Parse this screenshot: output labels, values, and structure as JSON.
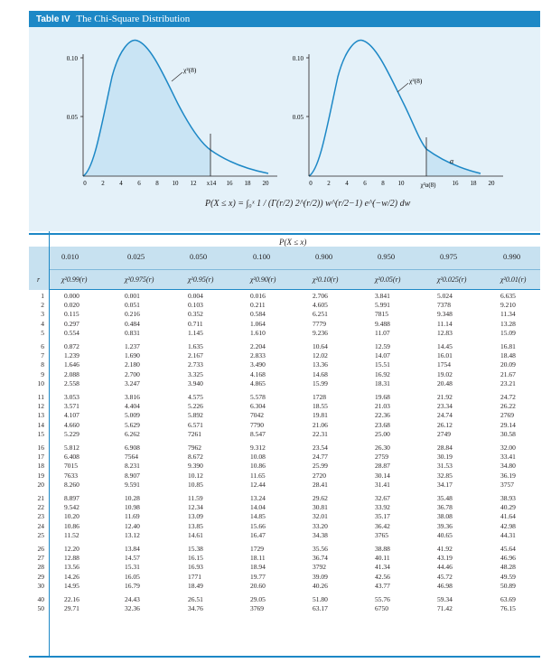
{
  "title": {
    "label": "Table IV",
    "name": "The Chi-Square Distribution"
  },
  "left_graph": {
    "y_ticks": [
      "0.10",
      "0.05"
    ],
    "x_ticks": [
      "0",
      "2",
      "4",
      "6",
      "8",
      "10",
      "12",
      "x14",
      "16",
      "18",
      "20"
    ],
    "curve_label": "χ²(8)"
  },
  "right_graph": {
    "y_ticks": [
      "0.10",
      "0.05"
    ],
    "x_ticks": [
      "0",
      "2",
      "4",
      "6",
      "8",
      "10",
      "χ²α(8)",
      "16",
      "18",
      "20"
    ],
    "curve_label": "χ²(8)",
    "alpha_label": "α"
  },
  "formula": "P(X ≤ x) = ∫₀ˣ  1 / (Γ(r/2) 2^(r/2))  w^(r/2−1) e^(−w/2) dw",
  "table": {
    "prob_caption": "P(X ≤ x)",
    "r_header": "r",
    "probabilities": [
      "0.010",
      "0.025",
      "0.050",
      "0.100",
      "0.900",
      "0.950",
      "0.975",
      "0.990"
    ],
    "quantile_headers": [
      "χ²0.99(r)",
      "χ²0.975(r)",
      "χ²0.95(r)",
      "χ²0.90(r)",
      "χ²0.10(r)",
      "χ²0.05(r)",
      "χ²0.025(r)",
      "χ²0.01(r)"
    ],
    "groups": [
      {
        "rows": [
          [
            "1",
            "0.000",
            "0.001",
            "0.004",
            "0.016",
            "2.706",
            "3.841",
            "5.024",
            "6.635"
          ],
          [
            "2",
            "0.020",
            "0.051",
            "0.103",
            "0.211",
            "4.605",
            "5.991",
            "7378",
            "9.210"
          ],
          [
            "3",
            "0.115",
            "0.216",
            "0.352",
            "0.584",
            "6.251",
            "7815",
            "9.348",
            "11.34"
          ],
          [
            "4",
            "0.297",
            "0.484",
            "0.711",
            "1.064",
            "7779",
            "9.488",
            "11.14",
            "13.28"
          ],
          [
            "5",
            "0.554",
            "0.831",
            "1.145",
            "1.610",
            "9.236",
            "11.07",
            "12.83",
            "15.09"
          ]
        ]
      },
      {
        "rows": [
          [
            "6",
            "0.872",
            "1.237",
            "1.635",
            "2.204",
            "10.64",
            "12.59",
            "14.45",
            "16.81"
          ],
          [
            "7",
            "1.239",
            "1.690",
            "2.167",
            "2.833",
            "12.02",
            "14.07",
            "16.01",
            "18.48"
          ],
          [
            "8",
            "1.646",
            "2.180",
            "2.733",
            "3.490",
            "13.36",
            "15.51",
            "1754",
            "20.09"
          ],
          [
            "9",
            "2.088",
            "2.700",
            "3.325",
            "4.168",
            "14.68",
            "16.92",
            "19.02",
            "21.67"
          ],
          [
            "10",
            "2.558",
            "3.247",
            "3.940",
            "4.865",
            "15.99",
            "18.31",
            "20.48",
            "23.21"
          ]
        ]
      },
      {
        "rows": [
          [
            "11",
            "3.053",
            "3.816",
            "4.575",
            "5.578",
            "1728",
            "19.68",
            "21.92",
            "24.72"
          ],
          [
            "12",
            "3.571",
            "4.404",
            "5.226",
            "6.304",
            "18.55",
            "21.03",
            "23.34",
            "26.22"
          ],
          [
            "13",
            "4.107",
            "5.009",
            "5.892",
            "7042",
            "19.81",
            "22.36",
            "24.74",
            "2769"
          ],
          [
            "14",
            "4.660",
            "5.629",
            "6.571",
            "7790",
            "21.06",
            "23.68",
            "26.12",
            "29.14"
          ],
          [
            "15",
            "5.229",
            "6.262",
            "7261",
            "8.547",
            "22.31",
            "25.00",
            "2749",
            "30.58"
          ]
        ]
      },
      {
        "rows": [
          [
            "16",
            "5.812",
            "6.908",
            "7962",
            "9.312",
            "23.54",
            "26.30",
            "28.84",
            "32.00"
          ],
          [
            "17",
            "6.408",
            "7564",
            "8.672",
            "10.08",
            "24.77",
            "2759",
            "30.19",
            "33.41"
          ],
          [
            "18",
            "7015",
            "8.231",
            "9.390",
            "10.86",
            "25.99",
            "28.87",
            "31.53",
            "34.80"
          ],
          [
            "19",
            "7633",
            "8.907",
            "10.12",
            "11.65",
            "2720",
            "30.14",
            "32.85",
            "36.19"
          ],
          [
            "20",
            "8.260",
            "9.591",
            "10.85",
            "12.44",
            "28.41",
            "31.41",
            "34.17",
            "3757"
          ]
        ]
      },
      {
        "rows": [
          [
            "21",
            "8.897",
            "10.28",
            "11.59",
            "13.24",
            "29.62",
            "32.67",
            "35.48",
            "38.93"
          ],
          [
            "22",
            "9.542",
            "10.98",
            "12.34",
            "14.04",
            "30.81",
            "33.92",
            "36.78",
            "40.29"
          ],
          [
            "23",
            "10.20",
            "11.69",
            "13.09",
            "14.85",
            "32.01",
            "35.17",
            "38.08",
            "41.64"
          ],
          [
            "24",
            "10.86",
            "12.40",
            "13.85",
            "15.66",
            "33.20",
            "36.42",
            "39.36",
            "42.98"
          ],
          [
            "25",
            "11.52",
            "13.12",
            "14.61",
            "16.47",
            "34.38",
            "3765",
            "40.65",
            "44.31"
          ]
        ]
      },
      {
        "rows": [
          [
            "26",
            "12.20",
            "13.84",
            "15.38",
            "1729",
            "35.56",
            "38.88",
            "41.92",
            "45.64"
          ],
          [
            "27",
            "12.88",
            "14.57",
            "16.15",
            "18.11",
            "36.74",
            "40.11",
            "43.19",
            "46.96"
          ],
          [
            "28",
            "13.56",
            "15.31",
            "16.93",
            "18.94",
            "3792",
            "41.34",
            "44.46",
            "48.28"
          ],
          [
            "29",
            "14.26",
            "16.05",
            "1771",
            "19.77",
            "39.09",
            "42.56",
            "45.72",
            "49.59"
          ],
          [
            "30",
            "14.95",
            "16.79",
            "18.49",
            "20.60",
            "40.26",
            "43.77",
            "46.98",
            "50.89"
          ]
        ]
      },
      {
        "rows": [
          [
            "40",
            "22.16",
            "24.43",
            "26.51",
            "29.05",
            "51.80",
            "55.76",
            "59.34",
            "63.69"
          ],
          [
            "50",
            "29.71",
            "32.36",
            "34.76",
            "3769",
            "63.17",
            "6750",
            "71.42",
            "76.15"
          ]
        ]
      }
    ]
  }
}
